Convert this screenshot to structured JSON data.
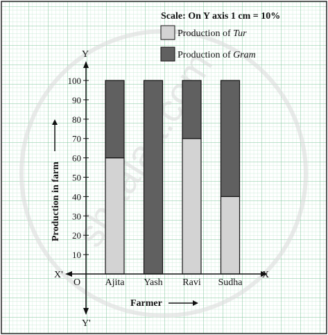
{
  "chart_data": {
    "type": "bar",
    "subtype": "stacked-100",
    "scale_note": "Scale: On Y axis 1 cm = 10%",
    "categories": [
      "Ajita",
      "Yash",
      "Ravi",
      "Sudha"
    ],
    "series": [
      {
        "name_prefix": "Production of ",
        "name_italic": "Tur",
        "color": "#d3d3d3",
        "values": [
          60,
          0,
          70,
          40
        ]
      },
      {
        "name_prefix": "Production of ",
        "name_italic": "Gram",
        "color": "#606060",
        "values": [
          40,
          100,
          30,
          60
        ]
      }
    ],
    "xlabel": "Farmer",
    "ylabel": "Production in farm",
    "ylim": [
      0,
      100
    ],
    "yticks": [
      10,
      20,
      30,
      40,
      50,
      60,
      70,
      80,
      90,
      100
    ],
    "axis_letters": {
      "y": "Y",
      "y_neg": "Y'",
      "x": "X",
      "x_neg": "X'",
      "origin": "O"
    },
    "grid": true,
    "legend_position": "top-right"
  },
  "watermark": "shaalaa.com",
  "colors": {
    "grid_minor": "#b9e3c9",
    "grid_major": "#7cc69a",
    "border": "#222222"
  }
}
